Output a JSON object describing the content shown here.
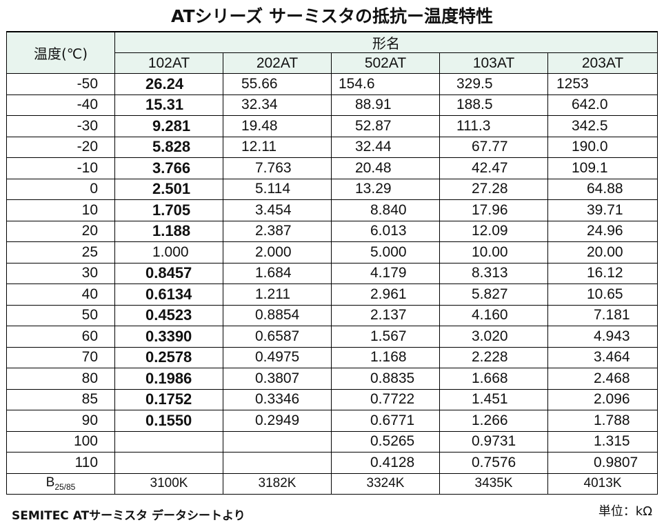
{
  "title": "ATシリーズ サーミスタの抵抗ー温度特性",
  "table": {
    "temp_header": "温度(℃)",
    "model_header": "形名",
    "columns": [
      "102AT",
      "202AT",
      "502AT",
      "103AT",
      "203AT"
    ],
    "rows": [
      {
        "temp": "-50",
        "values": [
          "26.24",
          "55.66",
          "154.6",
          "329.5",
          "1253"
        ]
      },
      {
        "temp": "-40",
        "values": [
          "15.31",
          "32.34",
          "88.91",
          "188.5",
          "642.0"
        ]
      },
      {
        "temp": "-30",
        "values": [
          "9.281",
          "19.48",
          "52.87",
          "111.3",
          "342.5"
        ]
      },
      {
        "temp": "-20",
        "values": [
          "5.828",
          "12.11",
          "32.44",
          "67.77",
          "190.0"
        ]
      },
      {
        "temp": "-10",
        "values": [
          "3.766",
          "7.763",
          "20.48",
          "42.47",
          "109.1"
        ]
      },
      {
        "temp": "0",
        "values": [
          "2.501",
          "5.114",
          "13.29",
          "27.28",
          "64.88"
        ]
      },
      {
        "temp": "10",
        "values": [
          "1.705",
          "3.454",
          "8.840",
          "17.96",
          "39.71"
        ]
      },
      {
        "temp": "20",
        "values": [
          "1.188",
          "2.387",
          "6.013",
          "12.09",
          "24.96"
        ]
      },
      {
        "temp": "25",
        "values": [
          "1.000",
          "2.000",
          "5.000",
          "10.00",
          "20.00"
        ]
      },
      {
        "temp": "30",
        "values": [
          "0.8457",
          "1.684",
          "4.179",
          "8.313",
          "16.12"
        ]
      },
      {
        "temp": "40",
        "values": [
          "0.6134",
          "1.211",
          "2.961",
          "5.827",
          "10.65"
        ]
      },
      {
        "temp": "50",
        "values": [
          "0.4523",
          "0.8854",
          "2.137",
          "4.160",
          "7.181"
        ]
      },
      {
        "temp": "60",
        "values": [
          "0.3390",
          "0.6587",
          "1.567",
          "3.020",
          "4.943"
        ]
      },
      {
        "temp": "70",
        "values": [
          "0.2578",
          "0.4975",
          "1.168",
          "2.228",
          "3.464"
        ]
      },
      {
        "temp": "80",
        "values": [
          "0.1986",
          "0.3807",
          "0.8835",
          "1.668",
          "2.468"
        ]
      },
      {
        "temp": "85",
        "values": [
          "0.1752",
          "0.3346",
          "0.7722",
          "1.451",
          "2.096"
        ]
      },
      {
        "temp": "90",
        "values": [
          "0.1550",
          "0.2949",
          "0.6771",
          "1.266",
          "1.788"
        ]
      },
      {
        "temp": "100",
        "values": [
          "",
          "",
          "0.5265",
          "0.9731",
          "1.315"
        ]
      },
      {
        "temp": "110",
        "values": [
          "",
          "",
          "0.4128",
          "0.7576",
          "0.9807"
        ]
      }
    ],
    "b_row": {
      "label": "B",
      "label_sub": "25/85",
      "values": [
        "3100K",
        "3182K",
        "3324K",
        "3435K",
        "4013K"
      ]
    }
  },
  "source_note": "SEMITEC ATサーミスタ データシートより",
  "unit_note": "単位：kΩ",
  "colors": {
    "header_bg": "#e8f4ee",
    "border": "#000000"
  }
}
